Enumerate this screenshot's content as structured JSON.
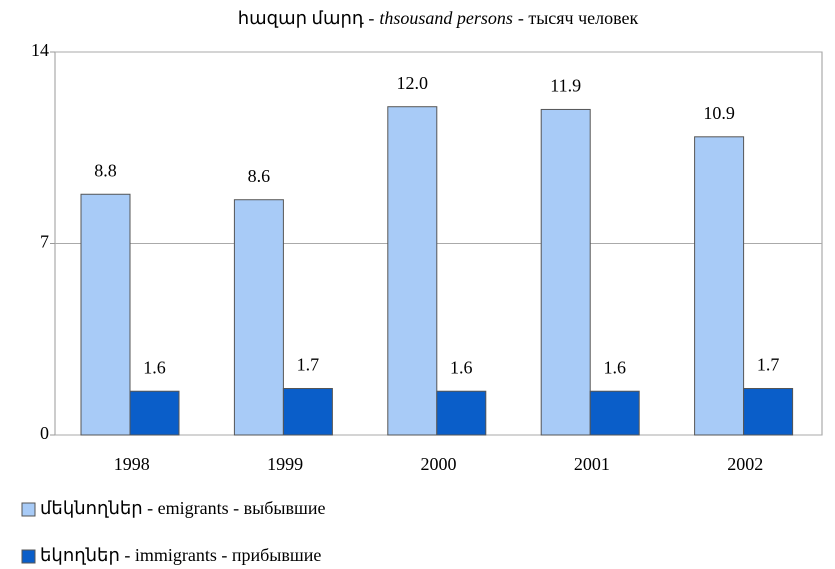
{
  "chart_data": {
    "type": "bar",
    "title": [
      "հազար մարդ -",
      "thsousand persons",
      "- тысяч человек"
    ],
    "categories": [
      "1998",
      "1999",
      "2000",
      "2001",
      "2002"
    ],
    "series": [
      {
        "name": "մեկնողներ - emigrants - выбывшие",
        "color": "#a8cbf7",
        "values": [
          8.8,
          8.6,
          12.0,
          11.9,
          10.9
        ],
        "value_labels": [
          "8.8",
          "8.6",
          "12.0",
          "11.9",
          "10.9"
        ]
      },
      {
        "name": "եկողներ - immigrants - прибывшие",
        "color": "#0a5ec9",
        "values": [
          1.6,
          1.7,
          1.6,
          1.6,
          1.7
        ],
        "value_labels": [
          "1.6",
          "1.7",
          "1.6",
          "1.6",
          "1.7"
        ]
      }
    ],
    "ylim": [
      0,
      14
    ],
    "yticks": [
      0,
      7,
      14
    ],
    "grid": true
  }
}
